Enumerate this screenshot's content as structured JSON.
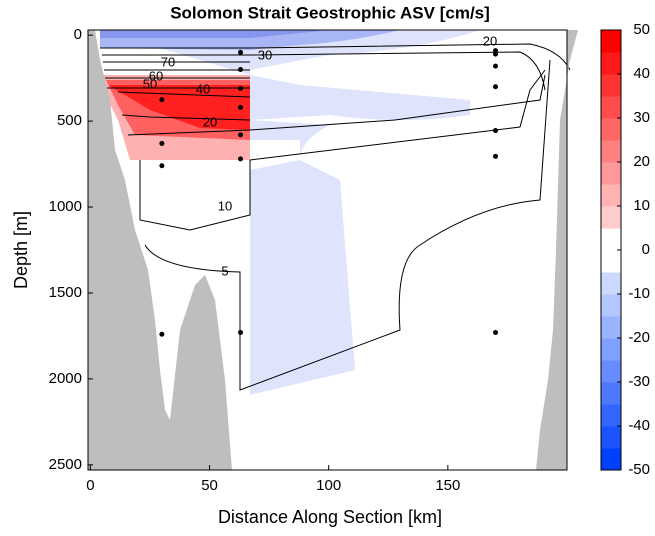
{
  "chart_data": {
    "type": "contour",
    "title": "Solomon Strait Geostrophic ASV [cm/s]",
    "x_label": "Distance Along Section [km]",
    "y_label": "Depth [m]",
    "xlim": [
      -1,
      200
    ],
    "xticks": [
      0,
      50,
      100,
      150
    ],
    "ylim": [
      -30,
      2530
    ],
    "yticks": [
      0,
      500,
      1000,
      1500,
      2000,
      2500
    ],
    "inverted_y": true,
    "contour_labels": [
      70,
      60,
      50,
      40,
      30,
      20,
      20,
      10,
      5
    ],
    "stations": {
      "x": [
        30,
        30,
        30,
        30,
        63,
        63,
        63,
        63,
        63,
        63,
        63,
        170,
        170,
        170,
        170,
        170,
        170,
        170
      ],
      "y": [
        375,
        630,
        760,
        1740,
        100,
        200,
        310,
        420,
        580,
        720,
        1730,
        90,
        110,
        180,
        300,
        555,
        705,
        1730
      ],
      "color": "#000000"
    },
    "colorbar": {
      "range": [
        -50,
        50
      ],
      "ticks": [
        -50,
        -40,
        -30,
        -20,
        -10,
        0,
        10,
        20,
        30,
        40,
        50
      ],
      "min_color": "#0040ff",
      "mid_color": "#ffffff",
      "max_color": "#ff0000"
    },
    "land_color": "#bebebe"
  }
}
